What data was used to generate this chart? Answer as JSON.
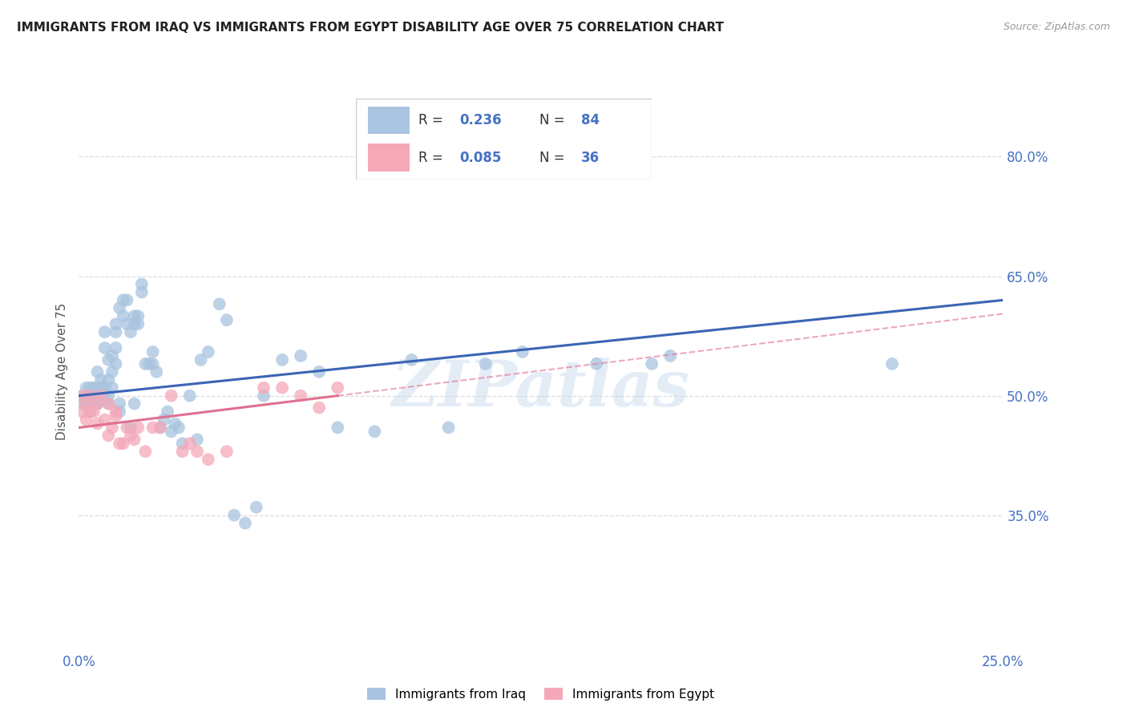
{
  "title": "IMMIGRANTS FROM IRAQ VS IMMIGRANTS FROM EGYPT DISABILITY AGE OVER 75 CORRELATION CHART",
  "source": "Source: ZipAtlas.com",
  "ylabel": "Disability Age Over 75",
  "xlim": [
    0.0,
    0.25
  ],
  "ylim": [
    0.18,
    0.88
  ],
  "ytick_vals": [
    0.35,
    0.5,
    0.65,
    0.8
  ],
  "ytick_labels": [
    "35.0%",
    "50.0%",
    "65.0%",
    "80.0%"
  ],
  "xtick_vals": [
    0.0,
    0.05,
    0.1,
    0.15,
    0.2,
    0.25
  ],
  "xtick_labels": [
    "0.0%",
    "",
    "",
    "",
    "",
    "25.0%"
  ],
  "grid_color": "#dddddd",
  "background_color": "#ffffff",
  "iraq_color": "#a8c4e0",
  "egypt_color": "#f4a8b8",
  "iraq_line_color": "#3a65b5",
  "egypt_line_color": "#e07090",
  "legend_label_iraq": "Immigrants from Iraq",
  "legend_label_egypt": "Immigrants from Egypt",
  "iraq_R": "0.236",
  "iraq_N": "84",
  "egypt_R": "0.085",
  "egypt_N": "36",
  "watermark": "ZIPatlas",
  "iraq_x": [
    0.001,
    0.001,
    0.002,
    0.002,
    0.002,
    0.003,
    0.003,
    0.003,
    0.004,
    0.004,
    0.004,
    0.005,
    0.005,
    0.005,
    0.005,
    0.006,
    0.006,
    0.006,
    0.007,
    0.007,
    0.007,
    0.007,
    0.008,
    0.008,
    0.008,
    0.008,
    0.009,
    0.009,
    0.009,
    0.01,
    0.01,
    0.01,
    0.01,
    0.011,
    0.011,
    0.011,
    0.012,
    0.012,
    0.013,
    0.013,
    0.014,
    0.014,
    0.015,
    0.015,
    0.015,
    0.016,
    0.016,
    0.017,
    0.017,
    0.018,
    0.019,
    0.02,
    0.02,
    0.021,
    0.022,
    0.023,
    0.024,
    0.025,
    0.026,
    0.027,
    0.028,
    0.03,
    0.032,
    0.033,
    0.035,
    0.038,
    0.04,
    0.042,
    0.045,
    0.048,
    0.05,
    0.055,
    0.06,
    0.065,
    0.07,
    0.08,
    0.09,
    0.1,
    0.11,
    0.12,
    0.14,
    0.155,
    0.16,
    0.22
  ],
  "iraq_y": [
    0.5,
    0.49,
    0.51,
    0.49,
    0.5,
    0.48,
    0.5,
    0.51,
    0.49,
    0.51,
    0.5,
    0.49,
    0.51,
    0.53,
    0.49,
    0.5,
    0.52,
    0.51,
    0.5,
    0.51,
    0.56,
    0.58,
    0.49,
    0.5,
    0.545,
    0.52,
    0.53,
    0.55,
    0.51,
    0.54,
    0.56,
    0.58,
    0.59,
    0.48,
    0.49,
    0.61,
    0.6,
    0.62,
    0.59,
    0.62,
    0.46,
    0.58,
    0.59,
    0.6,
    0.49,
    0.59,
    0.6,
    0.63,
    0.64,
    0.54,
    0.54,
    0.54,
    0.555,
    0.53,
    0.46,
    0.47,
    0.48,
    0.455,
    0.465,
    0.46,
    0.44,
    0.5,
    0.445,
    0.545,
    0.555,
    0.615,
    0.595,
    0.35,
    0.34,
    0.36,
    0.5,
    0.545,
    0.55,
    0.53,
    0.46,
    0.455,
    0.545,
    0.46,
    0.54,
    0.555,
    0.54,
    0.54,
    0.55,
    0.54
  ],
  "egypt_x": [
    0.001,
    0.001,
    0.002,
    0.002,
    0.003,
    0.003,
    0.004,
    0.005,
    0.005,
    0.006,
    0.007,
    0.008,
    0.008,
    0.009,
    0.01,
    0.01,
    0.011,
    0.012,
    0.013,
    0.014,
    0.015,
    0.016,
    0.018,
    0.02,
    0.022,
    0.025,
    0.028,
    0.03,
    0.032,
    0.035,
    0.04,
    0.05,
    0.055,
    0.06,
    0.065,
    0.07
  ],
  "egypt_y": [
    0.48,
    0.5,
    0.47,
    0.49,
    0.5,
    0.48,
    0.48,
    0.49,
    0.465,
    0.5,
    0.47,
    0.45,
    0.49,
    0.46,
    0.48,
    0.475,
    0.44,
    0.44,
    0.46,
    0.45,
    0.445,
    0.46,
    0.43,
    0.46,
    0.46,
    0.5,
    0.43,
    0.44,
    0.43,
    0.42,
    0.43,
    0.51,
    0.51,
    0.5,
    0.485,
    0.51
  ]
}
